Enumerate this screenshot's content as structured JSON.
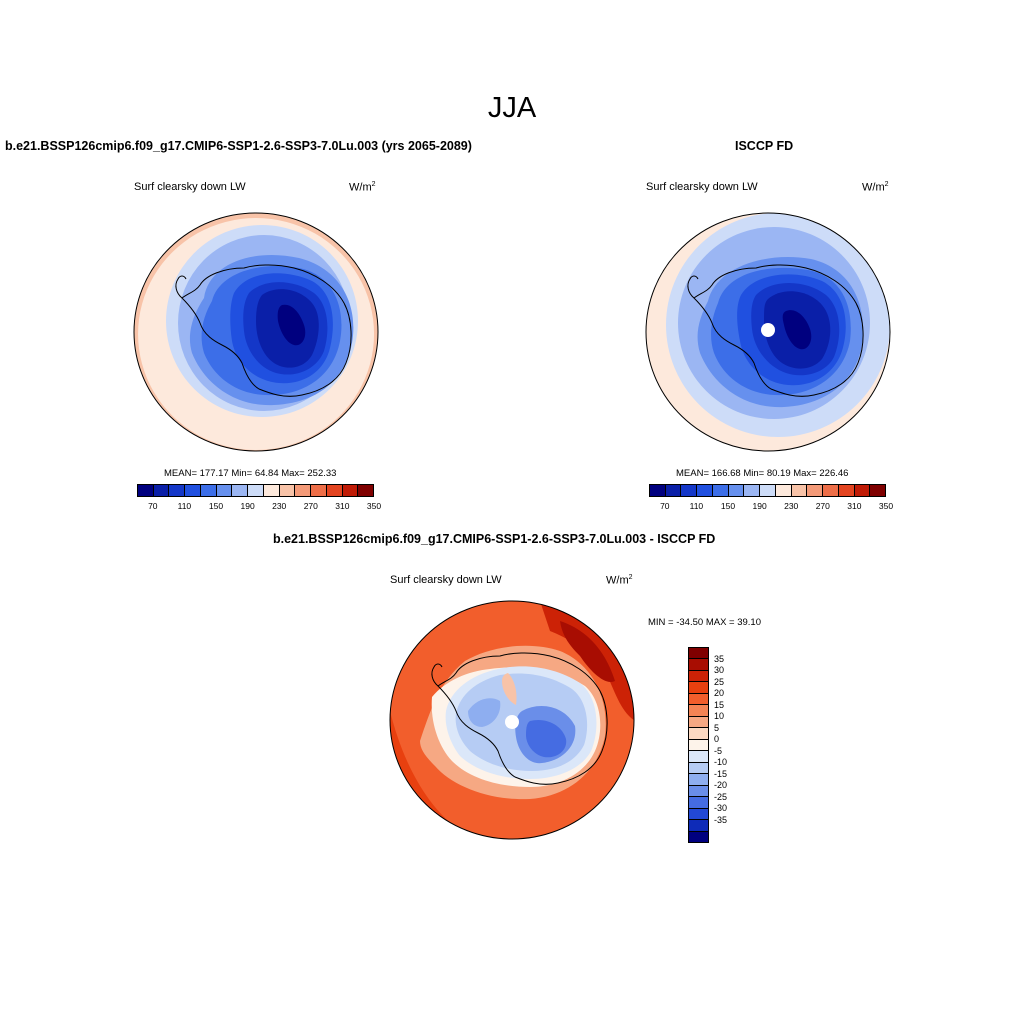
{
  "season": "JJA",
  "panels": {
    "model": {
      "title": "b.e21.BSSP126cmip6.f09_g17.CMIP6-SSP1-2.6-SSP3-7.0Lu.003 (yrs 2065-2089)",
      "variable": "Surf clearsky down LW",
      "units_base": "W/m",
      "units_exp": "2",
      "stats": "MEAN= 177.17  Min=  64.84  Max= 252.33"
    },
    "obs": {
      "title": "ISCCP FD",
      "variable": "Surf clearsky down LW",
      "units_base": "W/m",
      "units_exp": "2",
      "stats": "MEAN= 166.68  Min=  80.19  Max= 226.46"
    },
    "diff": {
      "title": "b.e21.BSSP126cmip6.f09_g17.CMIP6-SSP1-2.6-SSP3-7.0Lu.003 - ISCCP FD",
      "variable": "Surf clearsky down LW",
      "units_base": "W/m",
      "units_exp": "2",
      "stats": "MIN = -34.50 MAX =  39.10"
    }
  },
  "colorbar_abs": {
    "colors": [
      "#00007f",
      "#0a1fa8",
      "#1437c8",
      "#2050e0",
      "#3c6ee8",
      "#6690ee",
      "#9bb6f3",
      "#cddcf8",
      "#fde9dc",
      "#f8c3a8",
      "#f49a78",
      "#ee6e48",
      "#e34420",
      "#c01b06",
      "#7f0000"
    ],
    "tick_labels": [
      "70",
      "110",
      "150",
      "190",
      "230",
      "270",
      "310",
      "350"
    ]
  },
  "colorbar_diff": {
    "colors": [
      "#7f0000",
      "#a80d02",
      "#cc2206",
      "#e8400f",
      "#f25e2c",
      "#f48455",
      "#f6a883",
      "#fcd9c2",
      "#fdf3ea",
      "#dbe7f9",
      "#b6ccf4",
      "#8eaef0",
      "#6a8ee9",
      "#456ce2",
      "#2248d6",
      "#0e2bb8",
      "#00007f"
    ],
    "tick_labels": [
      "35",
      "30",
      "25",
      "20",
      "15",
      "10",
      "5",
      "0",
      "-5",
      "-10",
      "-15",
      "-20",
      "-25",
      "-30",
      "-35"
    ]
  },
  "chart_data": [
    {
      "type": "heatmap",
      "title": "b.e21.BSSP126cmip6.f09_g17.CMIP6-SSP1-2.6-SSP3-7.0Lu.003 (yrs 2065-2089)",
      "variable": "Surf clearsky down LW",
      "units": "W/m2",
      "projection": "south-polar-stereographic",
      "mean": 177.17,
      "min": 64.84,
      "max": 252.33,
      "contour_levels": [
        70,
        90,
        110,
        130,
        150,
        170,
        190,
        210,
        230,
        250,
        270,
        290,
        310,
        330,
        350
      ]
    },
    {
      "type": "heatmap",
      "title": "ISCCP FD",
      "variable": "Surf clearsky down LW",
      "units": "W/m2",
      "projection": "south-polar-stereographic",
      "mean": 166.68,
      "min": 80.19,
      "max": 226.46,
      "contour_levels": [
        70,
        90,
        110,
        130,
        150,
        170,
        190,
        210,
        230,
        250,
        270,
        290,
        310,
        330,
        350
      ]
    },
    {
      "type": "heatmap",
      "title": "b.e21.BSSP126cmip6.f09_g17.CMIP6-SSP1-2.6-SSP3-7.0Lu.003 - ISCCP FD",
      "variable": "Surf clearsky down LW",
      "units": "W/m2",
      "projection": "south-polar-stereographic",
      "min": -34.5,
      "max": 39.1,
      "contour_levels": [
        -35,
        -30,
        -25,
        -20,
        -15,
        -10,
        -5,
        0,
        5,
        10,
        15,
        20,
        25,
        30,
        35
      ]
    }
  ]
}
